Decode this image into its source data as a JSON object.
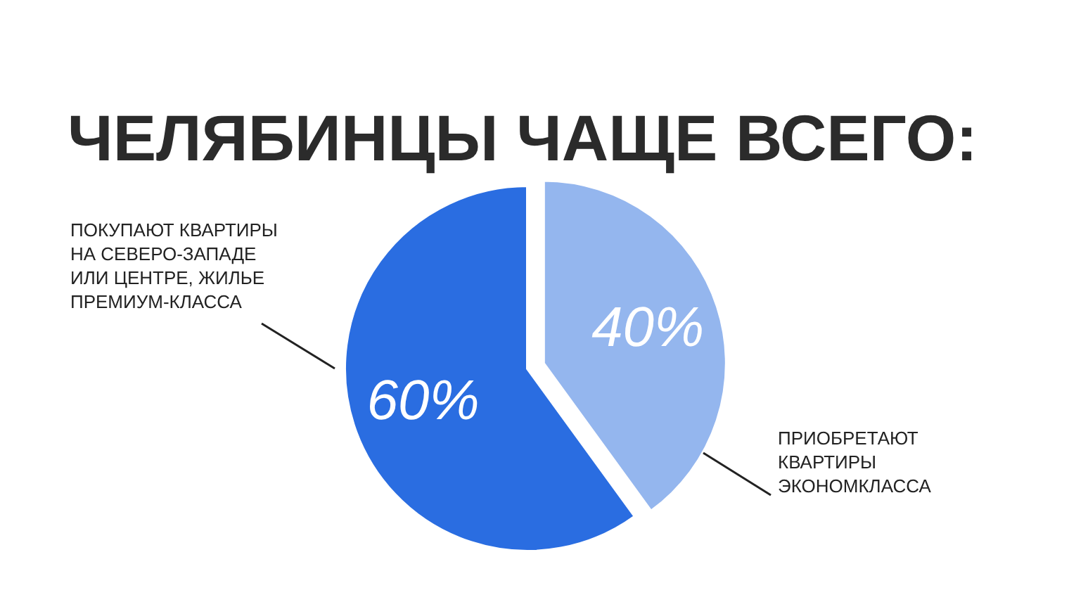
{
  "chart_data": {
    "type": "pie",
    "title": "ЧЕЛЯБИНЦЫ ЧАЩЕ ВСЕГО:",
    "categories": [
      "ПРИОБРЕТАЮТ\nКВАРТИРЫ\nЭКОНОМКЛАССА",
      "ПОКУПАЮТ КВАРТИРЫ\nНА СЕВЕРО-ЗАПАДЕ\nИЛИ ЦЕНТРЕ, ЖИЛЬЕ\nПРЕМИУМ-КЛАССА"
    ],
    "values": [
      40,
      60
    ],
    "colors": [
      "#94b6ee",
      "#2a6de1"
    ],
    "value_labels": [
      "40%",
      "60%"
    ]
  }
}
